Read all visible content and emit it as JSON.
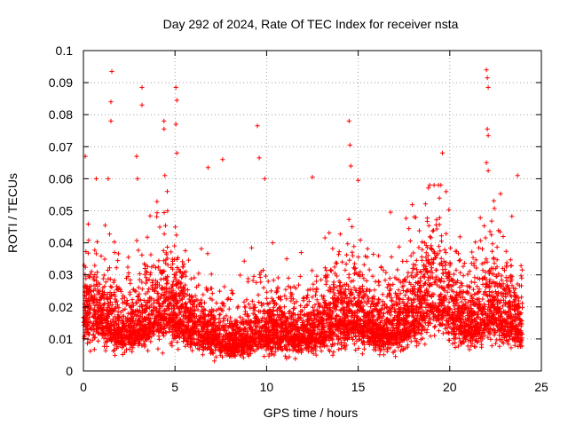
{
  "chart_data": {
    "type": "scatter",
    "title": "Day 292 of 2024, Rate Of TEC Index for receiver nsta",
    "xlabel": "GPS time / hours",
    "ylabel": "ROTI / TECUs",
    "xlim": [
      0,
      25
    ],
    "ylim": [
      0,
      0.1
    ],
    "grid": true,
    "marker": "+",
    "series_color": "#ff0000",
    "x_ticks": [
      0,
      5,
      10,
      15,
      20,
      25
    ],
    "x_tick_labels": [
      "0",
      "5",
      "10",
      "15",
      "20",
      "25"
    ],
    "y_ticks": [
      0,
      0.01,
      0.02,
      0.03,
      0.04,
      0.05,
      0.06,
      0.07,
      0.08,
      0.09,
      0.1
    ],
    "y_tick_labels": [
      "0",
      "0.01",
      "0.02",
      "0.03",
      "0.04",
      "0.05",
      "0.06",
      "0.07",
      "0.08",
      "0.09",
      "0.1"
    ],
    "outliers": [
      {
        "x": 0.1,
        "y": 0.067
      },
      {
        "x": 0.7,
        "y": 0.06
      },
      {
        "x": 1.35,
        "y": 0.06
      },
      {
        "x": 1.5,
        "y": 0.078
      },
      {
        "x": 1.5,
        "y": 0.084
      },
      {
        "x": 1.55,
        "y": 0.0935
      },
      {
        "x": 2.9,
        "y": 0.067
      },
      {
        "x": 2.95,
        "y": 0.06
      },
      {
        "x": 3.2,
        "y": 0.0885
      },
      {
        "x": 3.2,
        "y": 0.083
      },
      {
        "x": 4.4,
        "y": 0.078
      },
      {
        "x": 4.4,
        "y": 0.0755
      },
      {
        "x": 4.45,
        "y": 0.061
      },
      {
        "x": 5.05,
        "y": 0.0885
      },
      {
        "x": 5.1,
        "y": 0.0845
      },
      {
        "x": 5.05,
        "y": 0.077
      },
      {
        "x": 5.1,
        "y": 0.068
      },
      {
        "x": 6.8,
        "y": 0.0635
      },
      {
        "x": 7.6,
        "y": 0.066
      },
      {
        "x": 9.5,
        "y": 0.0765
      },
      {
        "x": 9.6,
        "y": 0.0665
      },
      {
        "x": 9.9,
        "y": 0.06
      },
      {
        "x": 12.5,
        "y": 0.0605
      },
      {
        "x": 14.5,
        "y": 0.078
      },
      {
        "x": 14.55,
        "y": 0.0705
      },
      {
        "x": 14.6,
        "y": 0.064
      },
      {
        "x": 15.0,
        "y": 0.0595
      },
      {
        "x": 19.6,
        "y": 0.068
      },
      {
        "x": 22.0,
        "y": 0.094
      },
      {
        "x": 22.05,
        "y": 0.0915
      },
      {
        "x": 22.1,
        "y": 0.0885
      },
      {
        "x": 22.05,
        "y": 0.0755
      },
      {
        "x": 22.1,
        "y": 0.0735
      },
      {
        "x": 22.0,
        "y": 0.065
      },
      {
        "x": 22.1,
        "y": 0.0625
      },
      {
        "x": 23.7,
        "y": 0.061
      }
    ],
    "bulk_point_count": 6000,
    "bulk_seed": 292
  }
}
